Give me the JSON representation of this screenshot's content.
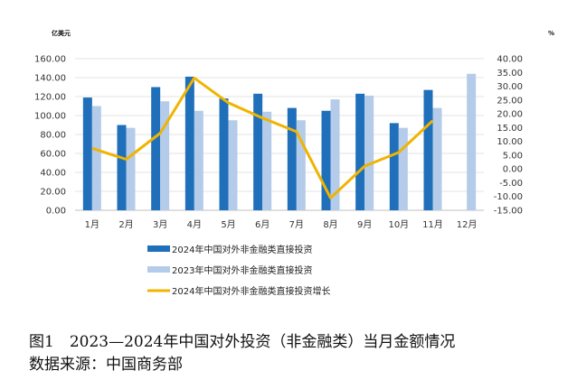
{
  "chart_data": {
    "type": "bar+line",
    "categories": [
      "1月",
      "2月",
      "3月",
      "4月",
      "5月",
      "6月",
      "7月",
      "8月",
      "9月",
      "10月",
      "11月",
      "12月"
    ],
    "left_axis": {
      "unit": "亿美元",
      "ylim": [
        0,
        160
      ],
      "ticks": [
        "0.00",
        "20.00",
        "40.00",
        "60.00",
        "80.00",
        "100.00",
        "120.00",
        "140.00",
        "160.00"
      ]
    },
    "right_axis": {
      "unit": "%",
      "ylim": [
        -15,
        40
      ],
      "ticks": [
        "-15.00",
        "-10.00",
        "-5.00",
        "0.00",
        "5.00",
        "10.00",
        "15.00",
        "20.00",
        "25.00",
        "30.00",
        "35.00",
        "40.00"
      ]
    },
    "series": [
      {
        "name": "2024年中国对外非金融类直接投资",
        "type": "bar",
        "axis": "left",
        "color": "#1f6fba",
        "values": [
          119,
          90,
          130,
          141,
          118,
          123,
          108,
          105,
          123,
          92,
          127,
          null
        ]
      },
      {
        "name": "2023年中国对外非金融类直接投资",
        "type": "bar",
        "axis": "left",
        "color": "#b4cbe9",
        "values": [
          110,
          87,
          115,
          105,
          95,
          104,
          95,
          117,
          121,
          87,
          108,
          144
        ]
      },
      {
        "name": "2024年中国对外非金融类直接投资增长",
        "type": "line",
        "axis": "right",
        "color": "#f0b400",
        "values": [
          7.5,
          3.5,
          13.0,
          33.0,
          24.0,
          18.5,
          13.5,
          -10.5,
          1.0,
          6.0,
          17.5,
          null
        ]
      }
    ]
  },
  "caption": {
    "line1": "图1　2023—2024年中国对外投资（非金融类）当月金额情况",
    "line2": "数据来源：中国商务部"
  }
}
